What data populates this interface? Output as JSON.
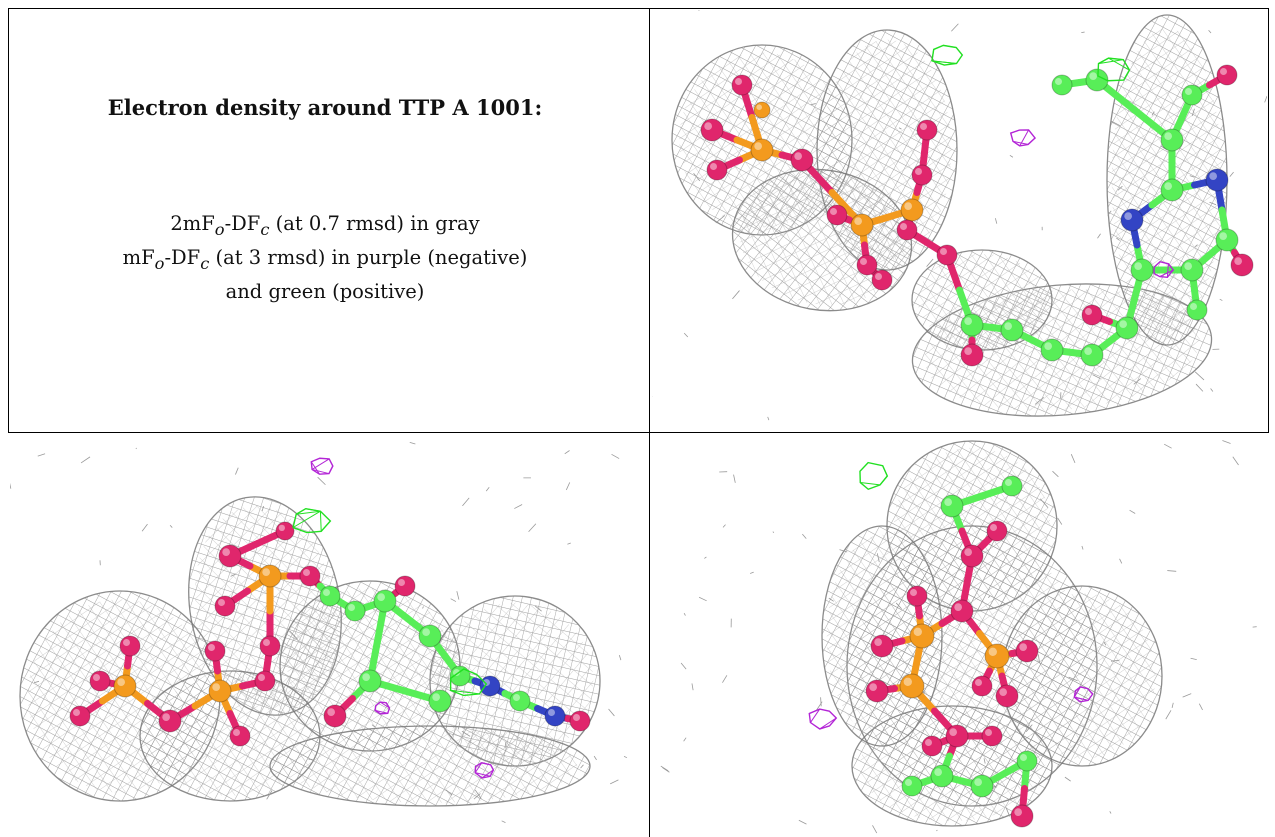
{
  "caption": {
    "title": "Electron density around TTP A 1001:",
    "line1": {
      "a": "2mF",
      "sub1": "o",
      "b": "-DF",
      "sub2": "c",
      "c": " (at 0.7 rmsd) in gray"
    },
    "line2": {
      "a": "mF",
      "sub1": "o",
      "b": "-DF",
      "sub2": "c",
      "c": " (at 3 rmsd) in purple (negative)"
    },
    "line3": "and green (positive)"
  },
  "colors": {
    "mesh_2fofc": "#8c8c8c",
    "positive_density": "#22e022",
    "negative_density": "#b325d6",
    "carbon": "#58ee58",
    "oxygen": "#e0266c",
    "phosphorus": "#f39a1e",
    "nitrogen": "#3344c4",
    "rule": "#000000"
  },
  "views": [
    {
      "name": "view-top-right",
      "orientation": "side view"
    },
    {
      "name": "view-bottom-left",
      "orientation": "rotated view"
    },
    {
      "name": "view-bottom-right",
      "orientation": "end-on view"
    }
  ]
}
